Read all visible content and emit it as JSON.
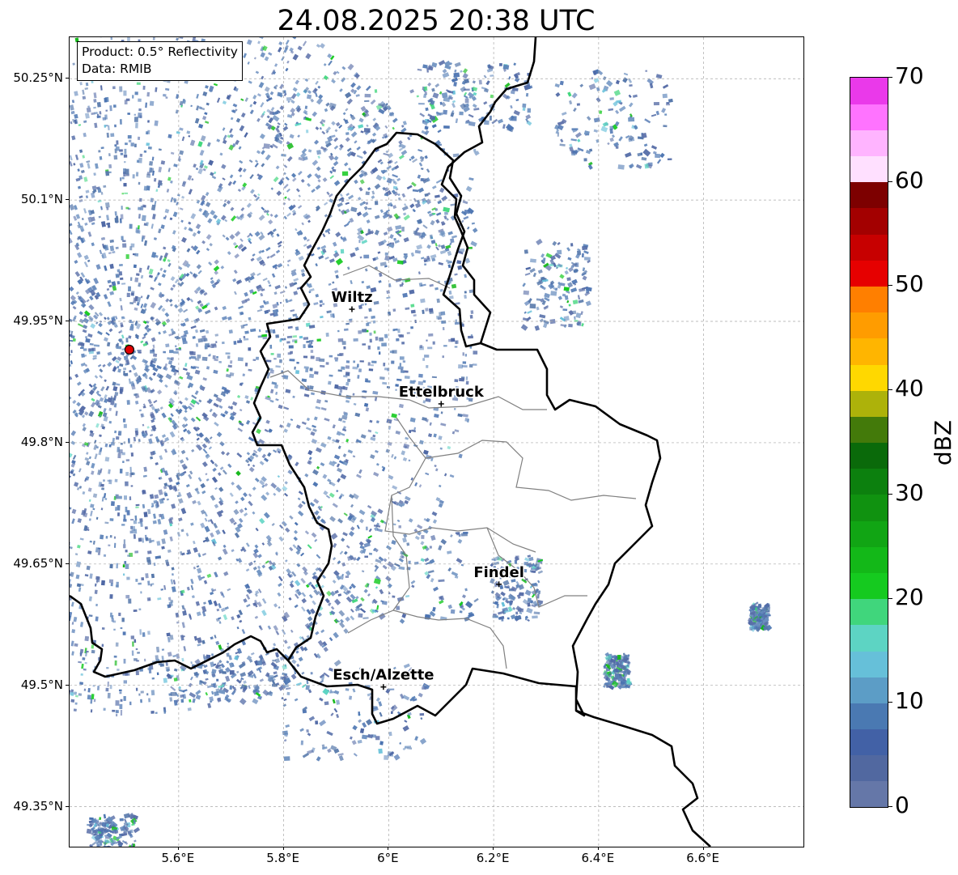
{
  "title": "24.08.2025 20:38 UTC",
  "info": {
    "product": "Product: 0.5° Reflectivity",
    "data": "Data: RMIB"
  },
  "map": {
    "lat_labels": [
      "50.25°N",
      "50.1°N",
      "49.95°N",
      "49.8°N",
      "49.65°N",
      "49.5°N",
      "49.35°N"
    ],
    "lat_values": [
      50.25,
      50.1,
      49.95,
      49.8,
      49.65,
      49.5,
      49.35
    ],
    "lon_labels": [
      "5.6°E",
      "5.8°E",
      "6°E",
      "6.2°E",
      "6.4°E",
      "6.6°E"
    ],
    "lon_values": [
      5.6,
      5.8,
      6.0,
      6.2,
      6.4,
      6.6
    ],
    "cities": [
      {
        "name": "Wiltz",
        "lon": 5.93,
        "lat": 49.965
      },
      {
        "name": "Ettelbruck",
        "lon": 6.1,
        "lat": 49.848
      },
      {
        "name": "Findel",
        "lon": 6.21,
        "lat": 49.625
      },
      {
        "name": "Esch/Alzette",
        "lon": 5.99,
        "lat": 49.498
      }
    ],
    "radar_site": {
      "lon": 5.506,
      "lat": 49.915,
      "color": "#e00000"
    },
    "border_color": "#000000",
    "canton_color": "#808080",
    "grid": true
  },
  "colorbar": {
    "label": "dBZ",
    "ticks": [
      "0",
      "10",
      "20",
      "30",
      "40",
      "50",
      "60",
      "70"
    ],
    "colors": [
      "#6577a8",
      "#5168a0",
      "#4261a6",
      "#4a79b2",
      "#5c9dc6",
      "#66c0d9",
      "#5dd4c3",
      "#40d67c",
      "#15ca1f",
      "#13b818",
      "#11a514",
      "#109210",
      "#0c800e",
      "#0a6a0a",
      "#437a0a",
      "#adb20a",
      "#ffd800",
      "#ffb500",
      "#ff9c00",
      "#ff7f00",
      "#e60000",
      "#c70000",
      "#a30000",
      "#7d0000",
      "#ffe0ff",
      "#ffb4ff",
      "#ff73ff",
      "#ea39ea"
    ]
  }
}
